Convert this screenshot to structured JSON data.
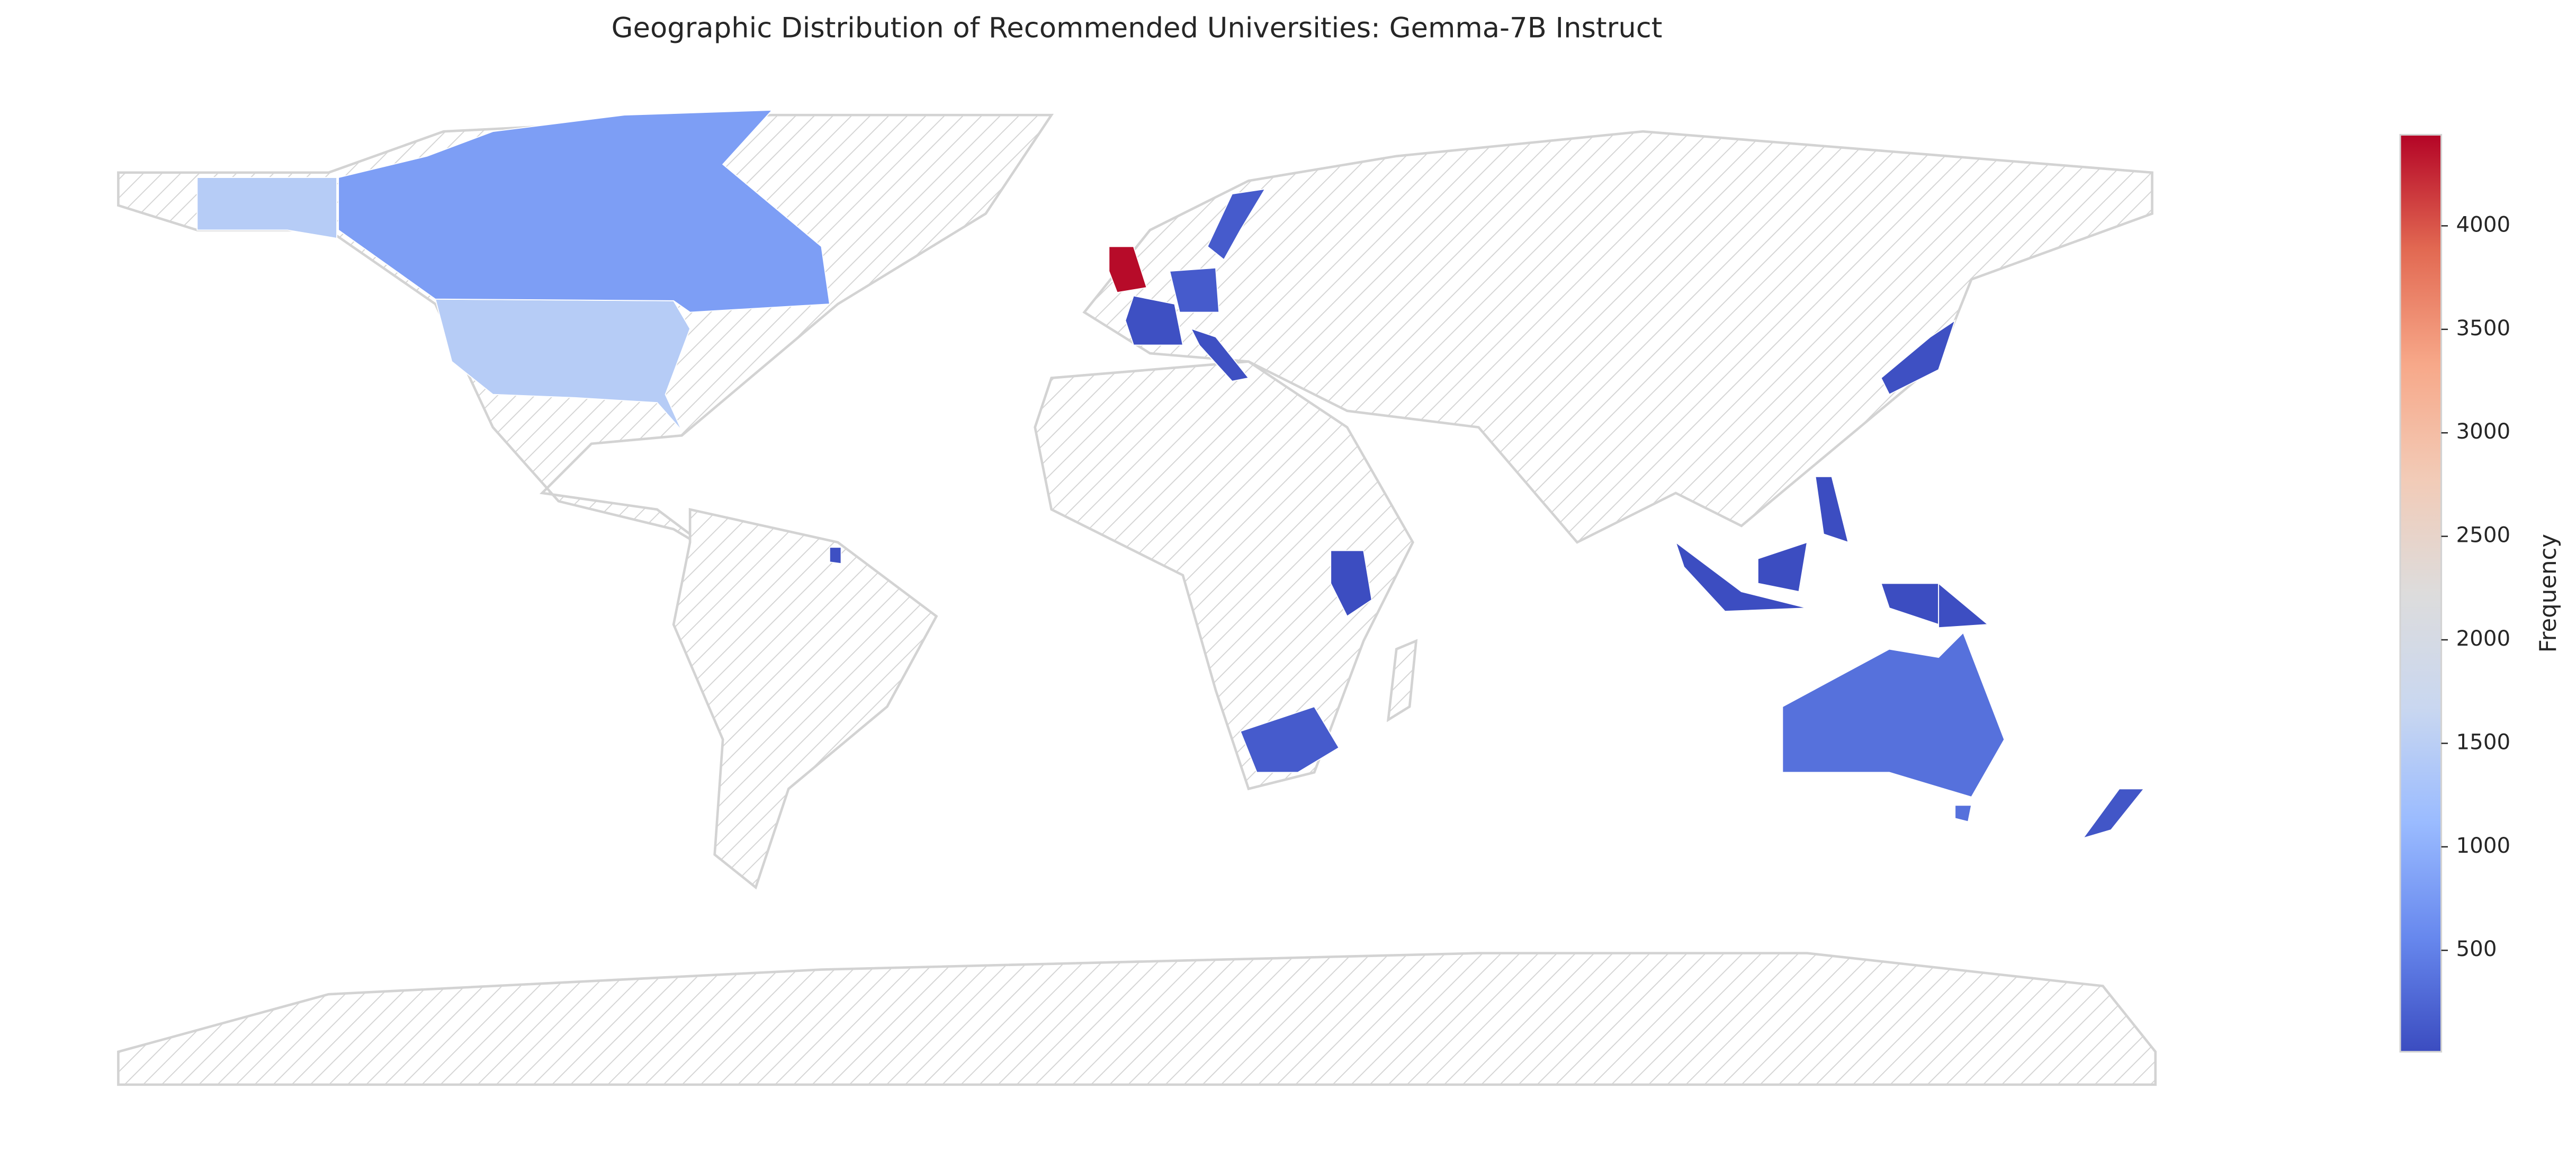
{
  "chart_data": {
    "type": "choropleth",
    "title": "Geographic Distribution of Recommended Universities: Gemma-7B Instruct",
    "values": [
      1450,
      800,
      4400,
      50,
      150,
      150,
      50,
      50,
      20,
      30,
      20,
      20,
      150,
      350,
      100
    ],
    "colormap": [
      "#3b4cc0",
      "#6788ee",
      "#9abbff",
      "#c9d7f0",
      "#dddcdc",
      "#f2cbb7",
      "#f7a889",
      "#e26952",
      "#b40426"
    ],
    "clim": [
      10,
      4440
    ],
    "cticks": [
      500,
      1000,
      1500,
      2000,
      2500,
      3000,
      3500,
      4000
    ],
    "colorbar_label": "Frequency"
  }
}
